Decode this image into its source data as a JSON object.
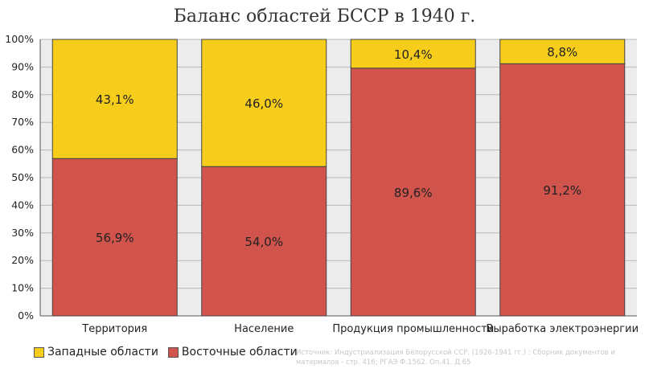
{
  "chart_data": {
    "type": "bar",
    "stacked": true,
    "title": "Баланс областей БССР в 1940 г.",
    "categories": [
      "Территория",
      "Население",
      "Продукция промышленности",
      "Выработка электроэнергии"
    ],
    "series": [
      {
        "name": "Восточные области",
        "values": [
          56.9,
          54.0,
          89.6,
          91.2
        ],
        "labels": [
          "56,9%",
          "54,0%",
          "89,6%",
          "91,2%"
        ],
        "color": "#d0534c"
      },
      {
        "name": "Западные области",
        "values": [
          43.1,
          46.0,
          10.4,
          8.8
        ],
        "labels": [
          "43,1%",
          "46,0%",
          "10,4%",
          "8,8%"
        ],
        "color": "#f7cd1c"
      }
    ],
    "ylim": [
      0,
      100
    ],
    "yticks": [
      0,
      10,
      20,
      30,
      40,
      50,
      60,
      70,
      80,
      90,
      100
    ],
    "ytick_labels": [
      "0%",
      "10%",
      "20%",
      "30%",
      "40%",
      "50%",
      "60%",
      "70%",
      "80%",
      "90%",
      "100%"
    ],
    "grid": true,
    "legend_position": "bottom-left",
    "legend": [
      "Западные области",
      "Восточные области"
    ]
  },
  "source_text": "Источник: Индустриализация Белорусской ССР. (1926-1941 гг.) : Сборник документов и материалов - стр. 416; РГАЭ Ф.1562. Оп.41. Д.65"
}
